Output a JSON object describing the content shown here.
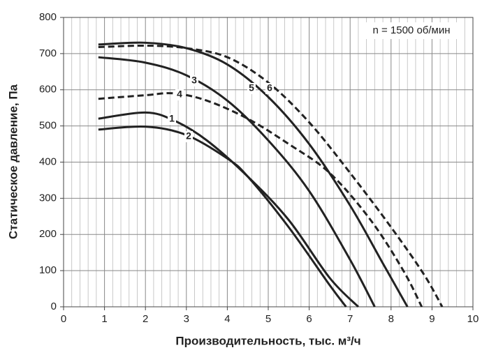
{
  "chart_data": {
    "type": "line",
    "xlabel": "Производительность, тыс. м³/ч",
    "ylabel": "Статическое давление, Па",
    "annotation": "n = 1500 об/мин",
    "xlim": [
      0,
      10
    ],
    "ylim": [
      0,
      800
    ],
    "xticks": [
      0,
      1,
      2,
      3,
      4,
      5,
      6,
      7,
      8,
      9,
      10
    ],
    "yticks": [
      0,
      100,
      200,
      300,
      400,
      500,
      600,
      700,
      800
    ],
    "grid": true,
    "series": [
      {
        "name": "1",
        "color": "#222222",
        "dashed": false,
        "x": [
          0.85,
          2,
          2.7,
          3.5,
          4.5,
          5.5,
          6.5,
          7.2
        ],
        "values": [
          520,
          537,
          515,
          460,
          360,
          240,
          80,
          0
        ]
      },
      {
        "name": "2",
        "color": "#222222",
        "dashed": false,
        "x": [
          0.85,
          2,
          3,
          4,
          4.5,
          5.5,
          6.5,
          6.9
        ],
        "values": [
          490,
          498,
          475,
          410,
          360,
          220,
          60,
          0
        ]
      },
      {
        "name": "3",
        "color": "#222222",
        "dashed": false,
        "x": [
          0.85,
          2,
          3,
          4,
          5,
          6,
          7,
          7.6
        ],
        "values": [
          690,
          675,
          640,
          570,
          460,
          320,
          130,
          0
        ]
      },
      {
        "name": "4",
        "color": "#222222",
        "dashed": true,
        "x": [
          0.85,
          2,
          2.7,
          3.5,
          4.5,
          5.5,
          6.5,
          7.5,
          8.3,
          8.75
        ],
        "values": [
          575,
          585,
          590,
          570,
          520,
          450,
          370,
          240,
          100,
          0
        ]
      },
      {
        "name": "5",
        "color": "#222222",
        "dashed": false,
        "x": [
          0.85,
          2,
          3,
          4,
          5,
          6,
          7,
          7.8,
          8.4
        ],
        "values": [
          725,
          730,
          715,
          670,
          580,
          450,
          280,
          120,
          0
        ]
      },
      {
        "name": "6",
        "color": "#222222",
        "dashed": true,
        "x": [
          0.85,
          2,
          3,
          4,
          5,
          6,
          7,
          8,
          8.8,
          9.25
        ],
        "values": [
          718,
          722,
          715,
          690,
          620,
          510,
          370,
          220,
          90,
          0
        ]
      }
    ]
  }
}
